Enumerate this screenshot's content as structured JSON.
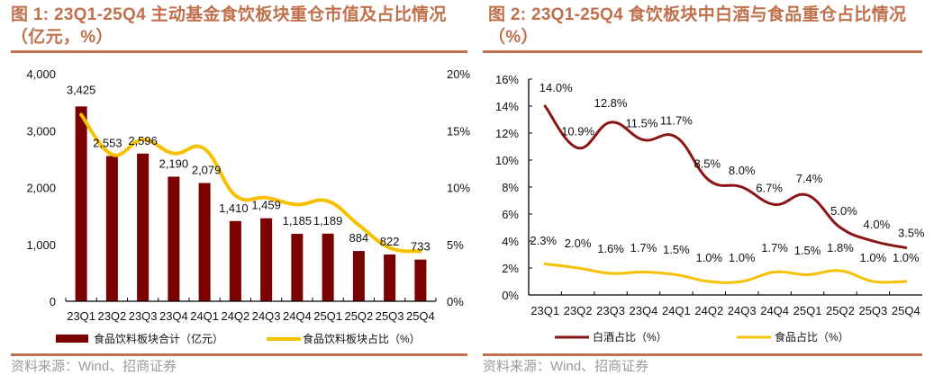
{
  "figures": [
    {
      "title_line1": "图 1: 23Q1-25Q4 主动基金食饮板块重仓市值及占比情况",
      "title_line2": "（亿元，%）",
      "source": "资料来源：Wind、招商证券"
    },
    {
      "title_line1": "图 2:  23Q1-25Q4 食饮板块中白酒与食品重仓占比情况",
      "title_line2": "（%）",
      "source": "资料来源：Wind、招商证券"
    }
  ],
  "colors": {
    "title": "#c0704c",
    "bar": "#7b0000",
    "line_share": "#f7c000",
    "liquor": "#8b1414",
    "food": "#f7c000",
    "source": "#9a9a9a"
  },
  "chart_data": [
    {
      "type": "bar",
      "title": "23Q1-25Q4 主动基金食饮板块重仓市值及占比情况（亿元，%）",
      "categories": [
        "23Q1",
        "23Q2",
        "23Q3",
        "23Q4",
        "24Q1",
        "24Q2",
        "24Q3",
        "24Q4",
        "25Q1",
        "25Q2",
        "25Q3",
        "25Q4"
      ],
      "series": [
        {
          "name": "食品饮料板块合计（亿元）",
          "type": "bar",
          "axis": "left",
          "values": [
            3425,
            2553,
            2596,
            2190,
            2079,
            1410,
            1459,
            1185,
            1189,
            884,
            822,
            733
          ],
          "labels": [
            "3,425",
            "2,553",
            "2,596",
            "2,190",
            "2,079",
            "1,410",
            "1,459",
            "1,185",
            "1,189",
            "884",
            "822",
            "733"
          ]
        },
        {
          "name": "食品饮料板块占比（%）",
          "type": "line",
          "axis": "right",
          "values": [
            16.4,
            12.9,
            14.2,
            13.0,
            13.4,
            9.3,
            9.1,
            8.5,
            8.8,
            6.7,
            4.7,
            4.4
          ]
        }
      ],
      "y_left": {
        "lim": [
          0,
          4000
        ],
        "ticks": [
          0,
          1000,
          2000,
          3000,
          4000
        ],
        "tick_labels": [
          "0",
          "1,000",
          "2,000",
          "3,000",
          "4,000"
        ]
      },
      "y_right": {
        "lim": [
          0,
          20
        ],
        "ticks": [
          0,
          5,
          10,
          15,
          20
        ],
        "tick_labels": [
          "0%",
          "5%",
          "10%",
          "15%",
          "20%"
        ]
      },
      "xlabel": "",
      "ylabel": "",
      "grid": false,
      "legend": "bottom"
    },
    {
      "type": "line",
      "title": "23Q1-25Q4 食饮板块中白酒与食品重仓占比情况（%）",
      "categories": [
        "23Q1",
        "23Q2",
        "23Q3",
        "23Q4",
        "24Q1",
        "24Q2",
        "24Q3",
        "24Q4",
        "25Q1",
        "25Q2",
        "25Q3",
        "25Q4"
      ],
      "series": [
        {
          "name": "白酒占比（%）",
          "values": [
            14.0,
            10.9,
            12.8,
            11.5,
            11.7,
            8.5,
            8.0,
            6.7,
            7.4,
            5.0,
            4.0,
            3.5
          ],
          "labels": [
            "14.0%",
            "10.9%",
            "12.8%",
            "11.5%",
            "11.7%",
            "8.5%",
            "8.0%",
            "6.7%",
            "7.4%",
            "5.0%",
            "4.0%",
            "3.5%"
          ]
        },
        {
          "name": "食品占比（%）",
          "values": [
            2.3,
            2.0,
            1.6,
            1.7,
            1.5,
            1.0,
            1.0,
            1.7,
            1.5,
            1.8,
            1.0,
            1.0
          ],
          "labels": [
            "2.3%",
            "2.0%",
            "1.6%",
            "1.7%",
            "1.5%",
            "1.0%",
            "1.0%",
            "1.7%",
            "1.5%",
            "1.8%",
            "1.0%",
            "1.0%"
          ]
        }
      ],
      "y": {
        "lim": [
          0,
          16
        ],
        "ticks": [
          0,
          2,
          4,
          6,
          8,
          10,
          12,
          14,
          16
        ],
        "tick_labels": [
          "0%",
          "2%",
          "4%",
          "6%",
          "8%",
          "10%",
          "12%",
          "14%",
          "16%"
        ]
      },
      "xlabel": "",
      "ylabel": "",
      "grid": false,
      "legend": "bottom"
    }
  ]
}
